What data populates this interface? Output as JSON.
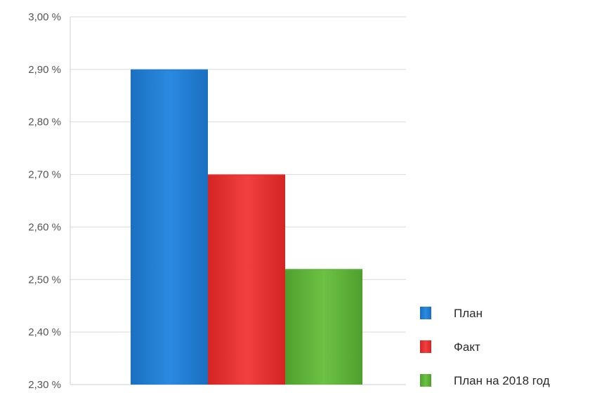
{
  "chart_data": {
    "type": "bar",
    "title": "",
    "xlabel": "",
    "ylabel": "",
    "ylim": [
      2.3,
      3.0
    ],
    "y_ticks": [
      "3,00 %",
      "2,90 %",
      "2,80 %",
      "2,70 %",
      "2,60 %",
      "2,50 %",
      "2,40 %",
      "2,30 %"
    ],
    "y_tick_values": [
      3.0,
      2.9,
      2.8,
      2.7,
      2.6,
      2.5,
      2.4,
      2.3
    ],
    "grid": true,
    "legend_position": "bottom-right",
    "series": [
      {
        "name": "План",
        "value": 2.9,
        "color": "#1f7fd1"
      },
      {
        "name": "Факт",
        "value": 2.7,
        "color": "#ea2f2f"
      },
      {
        "name": "План на 2018 год",
        "value": 2.52,
        "color": "#5fb43a"
      }
    ]
  }
}
